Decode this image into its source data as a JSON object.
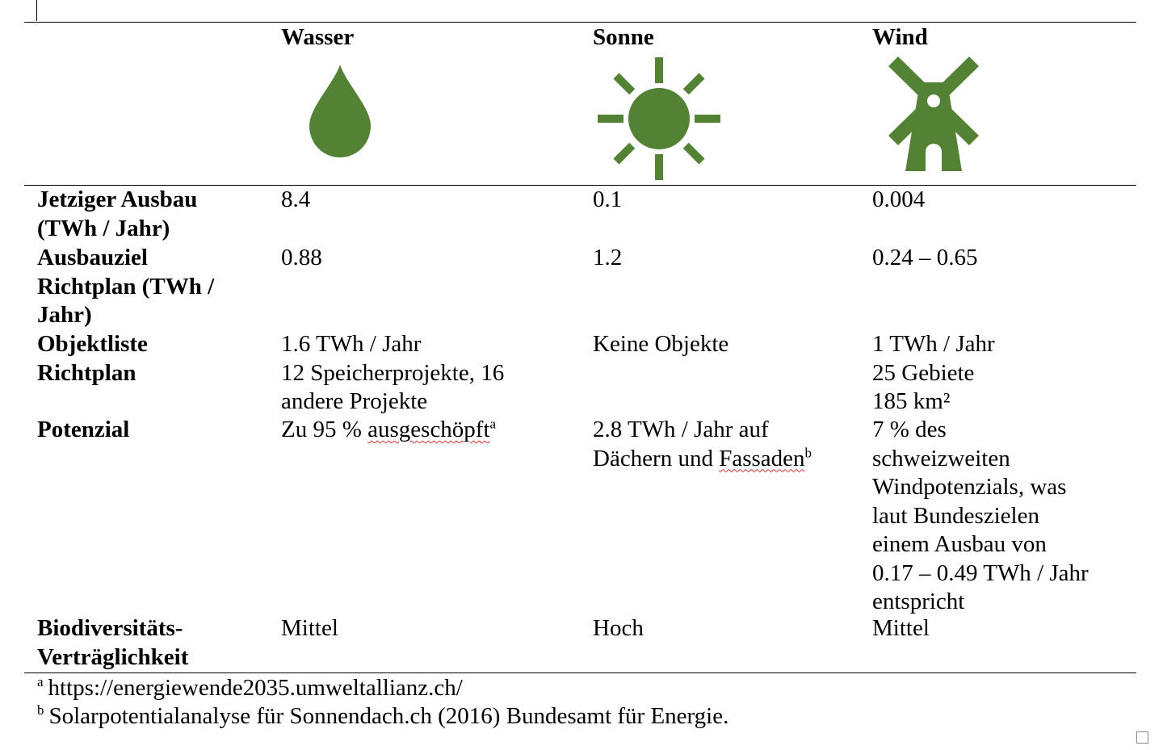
{
  "colors": {
    "icon_green": "#548235"
  },
  "table": {
    "columns": [
      {
        "title": "Wasser",
        "icon": "water-drop-icon"
      },
      {
        "title": "Sonne",
        "icon": "sun-icon"
      },
      {
        "title": "Wind",
        "icon": "windmill-icon"
      }
    ],
    "rows": [
      {
        "label_lines": [
          "Jetziger Ausbau",
          "(TWh / Jahr)"
        ],
        "cells": [
          [
            "8.4"
          ],
          [
            "0.1"
          ],
          [
            "0.004"
          ]
        ]
      },
      {
        "label_lines": [
          "Ausbauziel",
          "Richtplan (TWh /",
          "Jahr)"
        ],
        "cells": [
          [
            "0.88"
          ],
          [
            "1.2"
          ],
          [
            "0.24 – 0.65"
          ]
        ]
      },
      {
        "label_lines": [
          "Objektliste",
          "Richtplan"
        ],
        "cells": [
          [
            "1.6 TWh / Jahr",
            "12 Speicherprojekte, 16",
            "andere Projekte"
          ],
          [
            "Keine Objekte"
          ],
          [
            "1 TWh / Jahr",
            "25 Gebiete",
            "185 km²"
          ]
        ]
      },
      {
        "label_lines": [
          "Potenzial"
        ],
        "cells": [
          {
            "prefix": "Zu 95 % ",
            "word": "ausgeschöpft",
            "ref": "a"
          },
          {
            "line1": "2.8 TWh / Jahr auf",
            "prefix": "Dächern und ",
            "word": "Fassaden",
            "ref": "b"
          },
          [
            "7 % des",
            "schweizweiten",
            "Windpotenzials, was",
            "laut Bundeszielen",
            "einem Ausbau von",
            "0.17 – 0.49 TWh / Jahr",
            "entspricht"
          ]
        ]
      },
      {
        "label_lines": [
          "Biodiversitäts-",
          "Verträglichkeit"
        ],
        "cells": [
          [
            "Mittel"
          ],
          [
            "Hoch"
          ],
          [
            "Mittel"
          ]
        ]
      }
    ]
  },
  "footnotes": [
    {
      "mark": "a",
      "text": "https://energiewende2035.umweltallianz.ch/"
    },
    {
      "mark": "b",
      "text": "Solarpotentialanalyse für Sonnendach.ch (2016) Bundesamt für Energie."
    }
  ]
}
